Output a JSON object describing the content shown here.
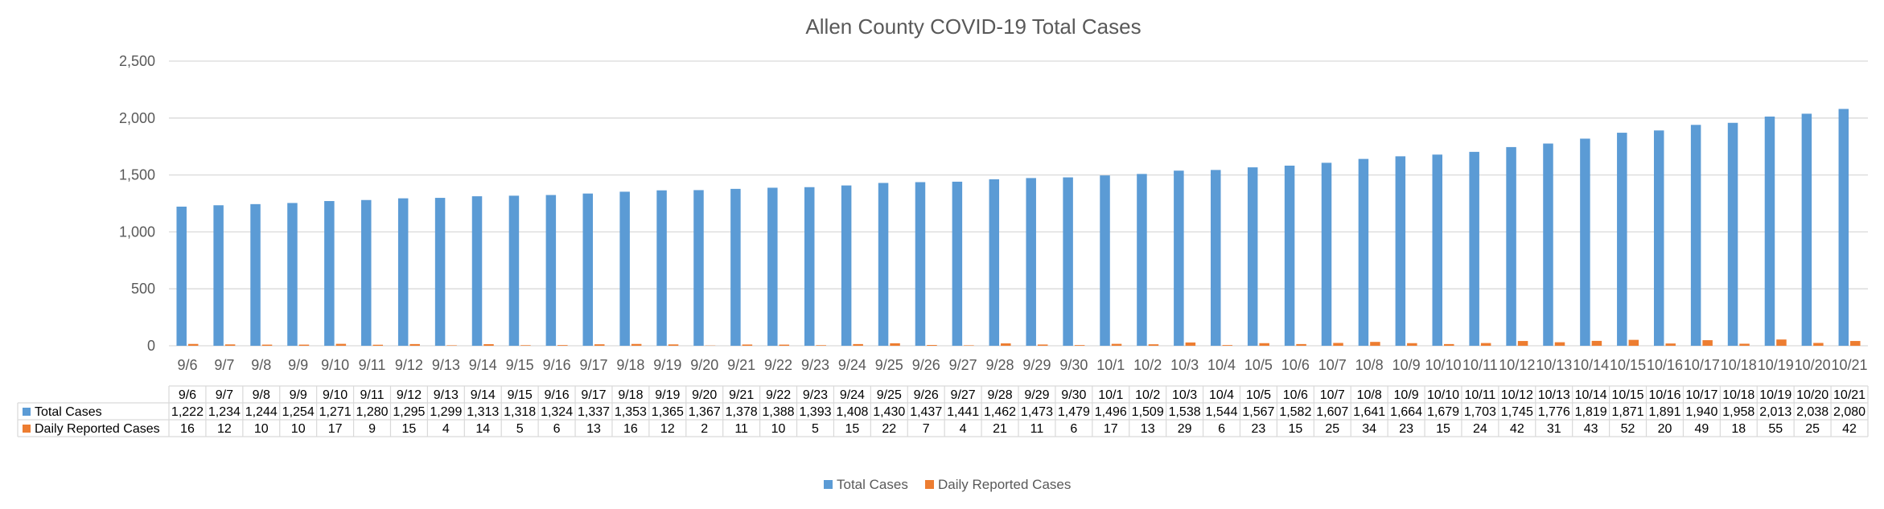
{
  "chart_data": {
    "type": "bar",
    "title": "Allen County COVID-19 Total Cases",
    "xlabel": "",
    "ylabel": "",
    "ylim": [
      0,
      2500
    ],
    "yticks": [
      "0",
      "500",
      "1,000",
      "1,500",
      "2,000",
      "2,500"
    ],
    "grid": true,
    "legend": "bottom",
    "categories": [
      "9/6",
      "9/7",
      "9/8",
      "9/9",
      "9/10",
      "9/11",
      "9/12",
      "9/13",
      "9/14",
      "9/15",
      "9/16",
      "9/17",
      "9/18",
      "9/19",
      "9/20",
      "9/21",
      "9/22",
      "9/23",
      "9/24",
      "9/25",
      "9/26",
      "9/27",
      "9/28",
      "9/29",
      "9/30",
      "10/1",
      "10/2",
      "10/3",
      "10/4",
      "10/5",
      "10/6",
      "10/7",
      "10/8",
      "10/9",
      "10/10",
      "10/11",
      "10/12",
      "10/13",
      "10/14",
      "10/15",
      "10/16",
      "10/17",
      "10/18",
      "10/19",
      "10/20",
      "10/21"
    ],
    "series": [
      {
        "name": "Total Cases",
        "color": "#5B9BD5",
        "values": [
          1222,
          1234,
          1244,
          1254,
          1271,
          1280,
          1295,
          1299,
          1313,
          1318,
          1324,
          1337,
          1353,
          1365,
          1367,
          1378,
          1388,
          1393,
          1408,
          1430,
          1437,
          1441,
          1462,
          1473,
          1479,
          1496,
          1509,
          1538,
          1544,
          1567,
          1582,
          1607,
          1641,
          1664,
          1679,
          1703,
          1745,
          1776,
          1819,
          1871,
          1891,
          1940,
          1958,
          2013,
          2038,
          2080
        ]
      },
      {
        "name": "Daily Reported Cases",
        "color": "#ED7D31",
        "values": [
          16,
          12,
          10,
          10,
          17,
          9,
          15,
          4,
          14,
          5,
          6,
          13,
          16,
          12,
          2,
          11,
          10,
          5,
          15,
          22,
          7,
          4,
          21,
          11,
          6,
          17,
          13,
          29,
          6,
          23,
          15,
          25,
          34,
          23,
          15,
          24,
          42,
          31,
          43,
          52,
          20,
          49,
          18,
          55,
          25,
          42
        ]
      }
    ],
    "table": {
      "row_labels": [
        "Total Cases",
        "Daily Reported Cases"
      ],
      "total_cells": [
        "1,222",
        "1,234",
        "1,244",
        "1,254",
        "1,271",
        "1,280",
        "1,295",
        "1,299",
        "1,313",
        "1,318",
        "1,324",
        "1,337",
        "1,353",
        "1,365",
        "1,367",
        "1,378",
        "1,388",
        "1,393",
        "1,408",
        "1,430",
        "1,437",
        "1,441",
        "1,462",
        "1,473",
        "1,479",
        "1,496",
        "1,509",
        "1,538",
        "1,544",
        "1,567",
        "1,582",
        "1,607",
        "1,641",
        "1,664",
        "1,679",
        "1,703",
        "1,745",
        "1,776",
        "1,819",
        "1,871",
        "1,891",
        "1,940",
        "1,958",
        "2,013",
        "2,038",
        "2,080"
      ],
      "daily_cells": [
        "16",
        "12",
        "10",
        "10",
        "17",
        "9",
        "15",
        "4",
        "14",
        "5",
        "6",
        "13",
        "16",
        "12",
        "2",
        "11",
        "10",
        "5",
        "15",
        "22",
        "7",
        "4",
        "21",
        "11",
        "6",
        "17",
        "13",
        "29",
        "6",
        "23",
        "15",
        "25",
        "34",
        "23",
        "15",
        "24",
        "42",
        "31",
        "43",
        "52",
        "20",
        "49",
        "18",
        "55",
        "25",
        "42"
      ]
    }
  }
}
